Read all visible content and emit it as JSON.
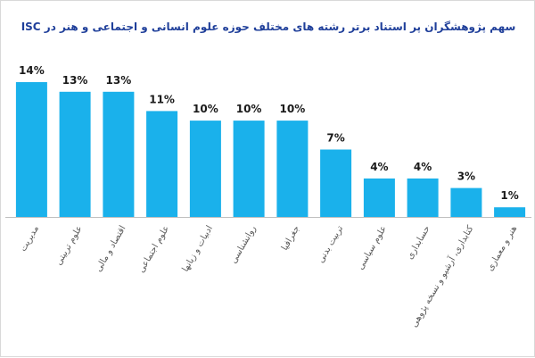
{
  "chart_data": {
    "type": "bar",
    "title": "سهم پژوهشگران پر استناد برتر رشته های مختلف حوزه علوم انسانی و اجتماعی و هنر در ISC",
    "xlabel": "",
    "ylabel": "",
    "ylim": [
      0,
      14
    ],
    "grid": false,
    "legend": "none",
    "bar_color": "#1ab1eb",
    "axis_color": "#bfbfbf",
    "value_suffix": "%",
    "categories": [
      "مدیریت",
      "علوم تربیتی",
      "اقتصاد و مالی",
      "علوم اجتماعی",
      "ادبیات و زبانها",
      "روانشناسی",
      "جغرافیا",
      "تربیت بدنی",
      "علوم سیاسی",
      "حسابداری",
      "کتابداری، آرشیو و نسخه پژوهی",
      "هنر و معماری"
    ],
    "values": [
      14,
      13,
      13,
      11,
      10,
      10,
      10,
      7,
      4,
      4,
      3,
      1
    ]
  }
}
